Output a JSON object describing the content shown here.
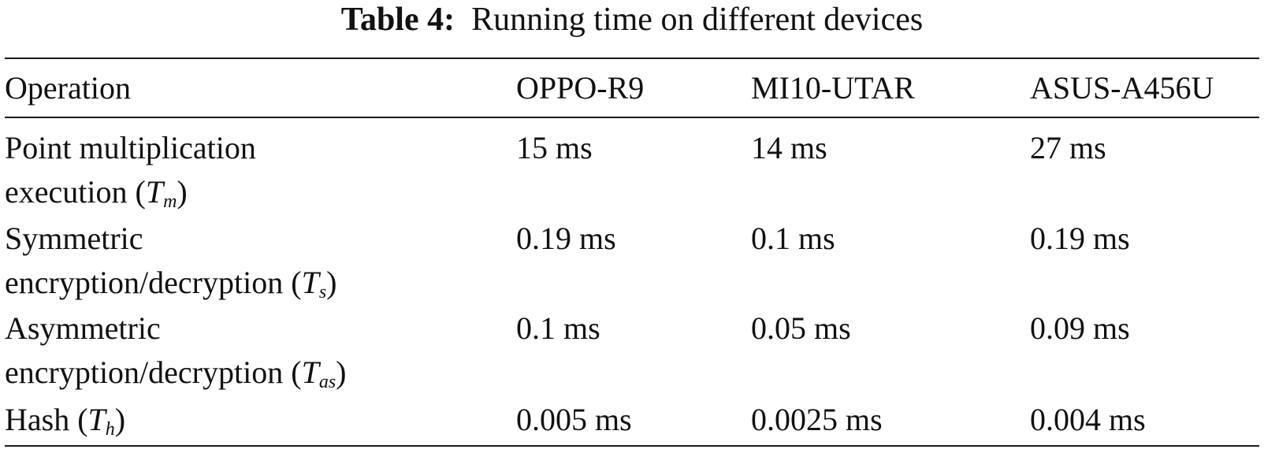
{
  "caption": {
    "label": "Table 4:",
    "text": "Running time on different devices"
  },
  "table": {
    "headers": [
      "Operation",
      "OPPO-R9",
      "MI10-UTAR",
      "ASUS-A456U"
    ],
    "rows": [
      {
        "operation_line1": "Point multiplication",
        "operation_line2": "execution",
        "symbol": "T",
        "subscript": "m",
        "values": [
          "15 ms",
          "14 ms",
          "27 ms"
        ]
      },
      {
        "operation_line1": "Symmetric",
        "operation_line2": "encryption/decryption",
        "symbol": "T",
        "subscript": "s",
        "values": [
          "0.19 ms",
          "0.1 ms",
          "0.19 ms"
        ]
      },
      {
        "operation_line1": "Asymmetric",
        "operation_line2": "encryption/decryption",
        "symbol": "T",
        "subscript": "as",
        "values": [
          "0.1 ms",
          "0.05 ms",
          "0.09 ms"
        ]
      },
      {
        "operation_line1": "Hash",
        "operation_line2": "",
        "symbol": "T",
        "subscript": "h",
        "values": [
          "0.005 ms",
          "0.0025 ms",
          "0.004 ms"
        ]
      }
    ]
  }
}
